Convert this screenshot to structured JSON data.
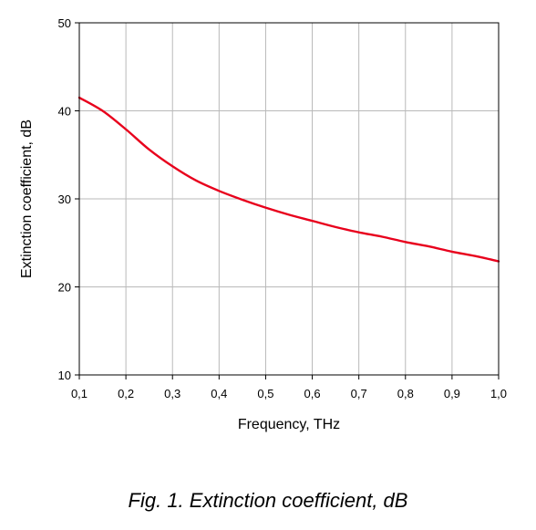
{
  "caption": "Fig. 1. Extinction coefficient, dB",
  "chart_data": {
    "type": "line",
    "title": "",
    "xlabel": "Frequency, THz",
    "ylabel": "Extinction coefficient, dB",
    "xlim": [
      0.1,
      1.0
    ],
    "ylim": [
      10,
      50
    ],
    "x_ticks": [
      "0,1",
      "0,2",
      "0,3",
      "0,4",
      "0,5",
      "0,6",
      "0,7",
      "0,8",
      "0,9",
      "1,0"
    ],
    "y_ticks": [
      "10",
      "20",
      "30",
      "40",
      "50"
    ],
    "grid": true,
    "line_color": "#e8001c",
    "series": [
      {
        "x": [
          0.1,
          0.15,
          0.2,
          0.25,
          0.3,
          0.35,
          0.4,
          0.45,
          0.5,
          0.55,
          0.6,
          0.65,
          0.7,
          0.75,
          0.8,
          0.85,
          0.9,
          0.95,
          1.0
        ],
        "y": [
          41.5,
          40.0,
          37.9,
          35.6,
          33.7,
          32.1,
          30.9,
          29.9,
          29.0,
          28.2,
          27.5,
          26.8,
          26.2,
          25.7,
          25.1,
          24.6,
          24.0,
          23.5,
          22.9
        ]
      }
    ]
  }
}
